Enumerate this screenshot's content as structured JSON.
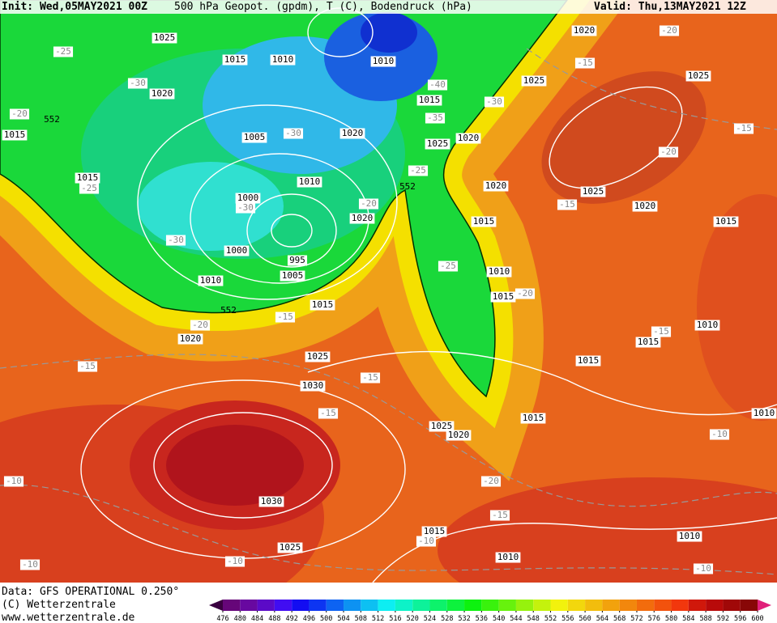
{
  "header": {
    "init": "Init: Wed,05MAY2021 00Z",
    "title": "500 hPa Geopot. (gpdm), T (C), Bodendruck (hPa)",
    "valid": "Valid: Thu,13MAY2021 12Z"
  },
  "footer": {
    "source": "Data: GFS OPERATIONAL 0.250°",
    "copyright": "(C) Wetterzentrale",
    "url": "www.wetterzentrale.de"
  },
  "colorbar": {
    "ticks": [
      476,
      480,
      484,
      488,
      492,
      496,
      500,
      504,
      508,
      512,
      516,
      520,
      524,
      528,
      532,
      536,
      540,
      544,
      548,
      552,
      556,
      560,
      564,
      568,
      572,
      576,
      580,
      584,
      588,
      592,
      596,
      600
    ]
  },
  "pressure_labels": [
    1025,
    1015,
    1010,
    1010,
    1020,
    1025,
    1025,
    1020,
    1015,
    1005,
    1020,
    1025,
    1020,
    1015,
    1015,
    1010,
    1000,
    1020,
    1025,
    1020,
    1015,
    1020,
    1015,
    1000,
    995,
    1005,
    1010,
    1010,
    1015,
    1015,
    1020,
    1010,
    1015,
    1025,
    1015,
    1030,
    1010,
    1025,
    1015,
    1020,
    1030,
    1015,
    1010,
    1025,
    1010
  ],
  "temperature_labels": [
    -25,
    -30,
    -20,
    -25,
    -30,
    -30,
    -30,
    -40,
    -35,
    -30,
    -25,
    -20,
    -25,
    -20,
    -15,
    -20,
    -15,
    -20,
    -15,
    -15,
    -20,
    -15,
    -15,
    -15,
    -15,
    -10,
    -10,
    -20,
    -15,
    -10,
    -10,
    -10,
    -10
  ],
  "height_labels": [
    552,
    552,
    552
  ]
}
